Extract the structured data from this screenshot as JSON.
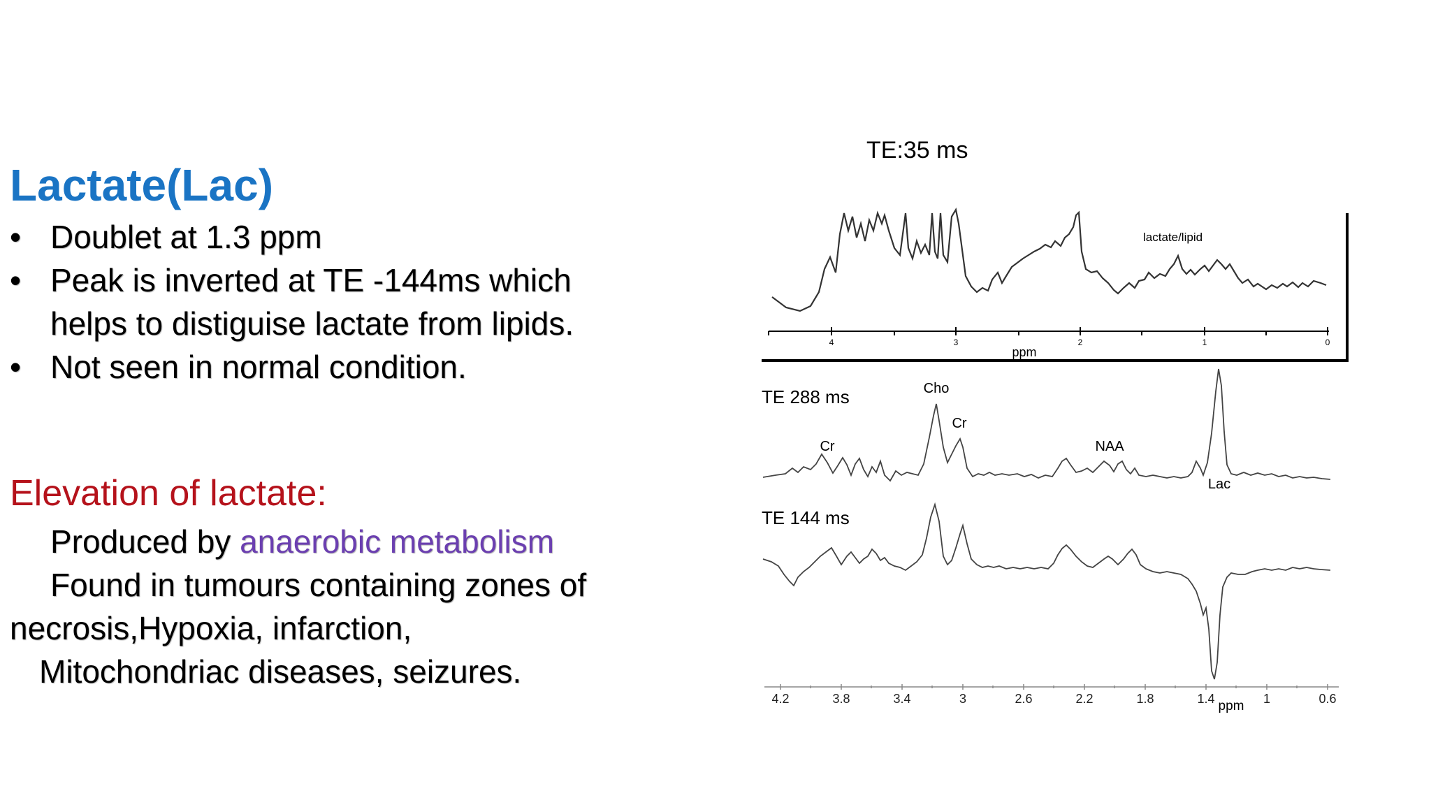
{
  "slide": {
    "title": "Lactate(Lac)",
    "bullets": [
      {
        "text": "Doublet at 1.3 ppm"
      },
      {
        "text": "Peak is inverted at TE -144ms which",
        "cont": "helps to distiguise lactate from lipids."
      },
      {
        "text": "Not seen in normal condition."
      }
    ],
    "bullet_symbol": "•",
    "elevation": {
      "heading": "Elevation of lactate:",
      "line1_prefix": "Produced by ",
      "line1_highlight": "anaerobic metabolism",
      "line2": "Found in tumours containing zones of",
      "line3": "necrosis,Hypoxia, infarction,",
      "line4": "Mitochondriac diseases, seizures."
    },
    "colors": {
      "title": "#1a74c4",
      "elevation_heading": "#b5121b",
      "highlight": "#6b3fb0"
    }
  },
  "figure": {
    "top_label": "TE:35 ms",
    "top_panel": {
      "annotation": "lactate/lipid",
      "axis_label": "ppm",
      "ticks": [
        "4",
        "3",
        "2",
        "1",
        "0"
      ]
    },
    "bottom_panel": {
      "series": [
        {
          "name": "TE 288 ms"
        },
        {
          "name": "TE 144 ms"
        }
      ],
      "peak_labels": [
        "Cr",
        "Cho",
        "Cr",
        "NAA",
        "Lac"
      ],
      "axis_label": "ppm",
      "ticks": [
        "4.2",
        "3.8",
        "3.4",
        "3",
        "2.6",
        "2.2",
        "1.8",
        "1.4",
        "1",
        "0.6"
      ]
    }
  }
}
